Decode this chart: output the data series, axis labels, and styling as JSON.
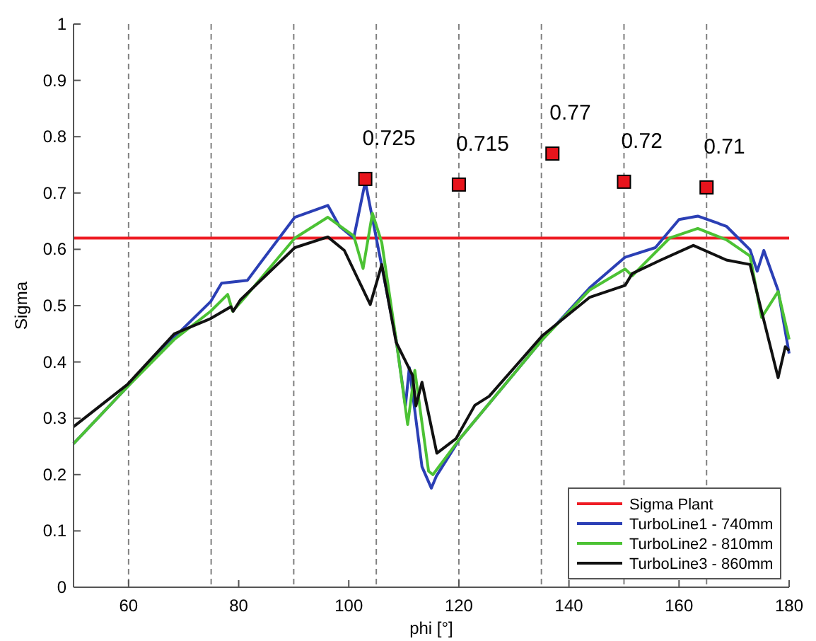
{
  "chart_data": {
    "type": "line",
    "xlabel": "phi [°]",
    "ylabel": "Sigma",
    "xlim": [
      50,
      180
    ],
    "ylim": [
      0,
      1
    ],
    "xticks": [
      60,
      80,
      100,
      120,
      140,
      160,
      180
    ],
    "yticks": [
      0,
      0.1,
      0.2,
      0.3,
      0.4,
      0.5,
      0.6,
      0.7,
      0.8,
      0.9,
      1
    ],
    "legend": "bottom right",
    "grid": false,
    "ref_lines": [
      {
        "axis": "x",
        "value": 60,
        "color": "#808080",
        "line_style": "dashed"
      },
      {
        "axis": "x",
        "value": 75,
        "color": "#808080",
        "line_style": "dashed"
      },
      {
        "axis": "x",
        "value": 90,
        "color": "#808080",
        "line_style": "dashed"
      },
      {
        "axis": "x",
        "value": 105,
        "color": "#808080",
        "line_style": "dashed"
      },
      {
        "axis": "x",
        "value": 120,
        "color": "#808080",
        "line_style": "dashed"
      },
      {
        "axis": "x",
        "value": 135,
        "color": "#808080",
        "line_style": "dashed"
      },
      {
        "axis": "x",
        "value": 150,
        "color": "#808080",
        "line_style": "dashed"
      },
      {
        "axis": "x",
        "value": 165,
        "color": "#808080",
        "line_style": "dashed"
      }
    ],
    "series": [
      {
        "name": "Sigma Plant",
        "color": "#ee1c24",
        "x": [
          50,
          180
        ],
        "values": [
          0.62,
          0.62
        ]
      },
      {
        "name": "TurboLine1 - 740mm",
        "color": "#2b3fb5",
        "x": [
          50,
          59.8,
          68.3,
          74.9,
          76.9,
          81.6,
          83.8,
          90.2,
          96.2,
          98.3,
          100.9,
          103,
          104.8,
          108.6,
          110.3,
          111,
          113.3,
          115,
          115.9,
          120.2,
          135.2,
          143.8,
          150.2,
          155.7,
          160,
          163.4,
          168.6,
          172.9,
          174.2,
          175.4,
          178,
          180
        ],
        "values": [
          0.255,
          0.356,
          0.444,
          0.507,
          0.54,
          0.545,
          0.574,
          0.657,
          0.678,
          0.641,
          0.62,
          0.72,
          0.63,
          0.44,
          0.322,
          0.39,
          0.214,
          0.176,
          0.197,
          0.264,
          0.44,
          0.532,
          0.586,
          0.603,
          0.653,
          0.659,
          0.641,
          0.599,
          0.561,
          0.598,
          0.527,
          0.415
        ]
      },
      {
        "name": "TurboLine2 - 810mm",
        "color": "#4cc234",
        "x": [
          50,
          59.8,
          68.3,
          74.9,
          78,
          78.9,
          81.6,
          90.2,
          96.2,
          100.9,
          102.6,
          104.3,
          106,
          108.6,
          110.7,
          112,
          114.5,
          115.3,
          120.2,
          135.2,
          143.8,
          150.2,
          151.5,
          153.2,
          158.3,
          163.4,
          168.6,
          172.9,
          175,
          178,
          180
        ],
        "values": [
          0.255,
          0.356,
          0.44,
          0.49,
          0.52,
          0.49,
          0.52,
          0.62,
          0.657,
          0.624,
          0.566,
          0.664,
          0.612,
          0.44,
          0.289,
          0.385,
          0.206,
          0.2,
          0.264,
          0.44,
          0.528,
          0.565,
          0.553,
          0.57,
          0.62,
          0.637,
          0.617,
          0.588,
          0.479,
          0.525,
          0.44
        ]
      },
      {
        "name": "TurboLine3 - 860mm",
        "color": "#111111",
        "x": [
          50,
          59.8,
          68.3,
          74.9,
          78.6,
          79,
          80.3,
          90.2,
          96.2,
          99.2,
          103.9,
          106,
          108.6,
          111.6,
          112.2,
          113.3,
          116,
          119.5,
          122.9,
          125.5,
          135.2,
          143.8,
          150.2,
          151.5,
          156.7,
          162.6,
          168.6,
          172.9,
          175,
          178,
          179.3,
          180
        ],
        "values": [
          0.285,
          0.36,
          0.45,
          0.477,
          0.498,
          0.49,
          0.51,
          0.603,
          0.622,
          0.598,
          0.502,
          0.573,
          0.435,
          0.376,
          0.322,
          0.364,
          0.238,
          0.264,
          0.323,
          0.339,
          0.447,
          0.515,
          0.536,
          0.557,
          0.581,
          0.607,
          0.581,
          0.573,
          0.49,
          0.372,
          0.427,
          0.42
        ]
      },
      {
        "type": "scatter",
        "marker": "square",
        "color": "#e8141c",
        "x": [
          103,
          120,
          137,
          150,
          165
        ],
        "values": [
          0.725,
          0.715,
          0.77,
          0.72,
          0.71
        ],
        "value_labels": [
          "0.725",
          "0.715",
          "0.77",
          "0.72",
          "0.71"
        ]
      }
    ]
  }
}
